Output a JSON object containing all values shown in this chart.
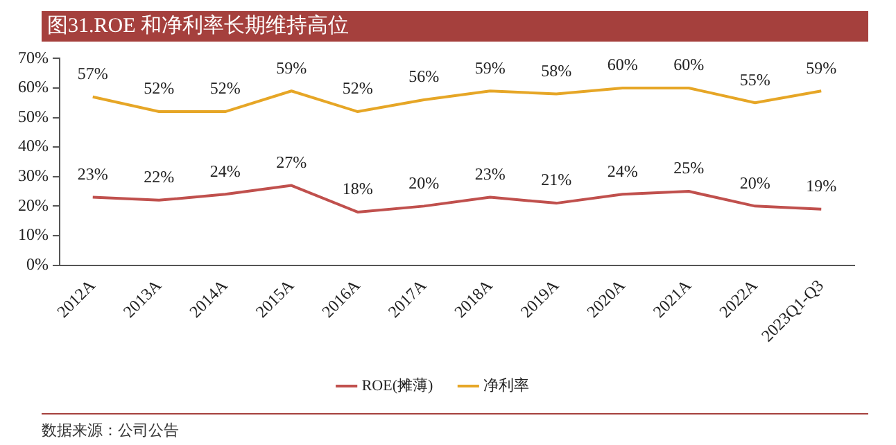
{
  "chart_data": {
    "type": "line",
    "title": "图31.ROE 和净利率长期维持高位",
    "categories": [
      "2012A",
      "2013A",
      "2014A",
      "2015A",
      "2016A",
      "2017A",
      "2018A",
      "2019A",
      "2020A",
      "2021A",
      "2022A",
      "2023Q1-Q3"
    ],
    "series": [
      {
        "name": "ROE(摊薄)",
        "color": "#c0504d",
        "values": [
          23,
          22,
          24,
          27,
          18,
          20,
          23,
          21,
          24,
          25,
          20,
          19
        ],
        "value_labels": [
          "23%",
          "22%",
          "24%",
          "27%",
          "18%",
          "20%",
          "23%",
          "21%",
          "24%",
          "25%",
          "20%",
          "19%"
        ]
      },
      {
        "name": "净利率",
        "color": "#e6a626",
        "values": [
          57,
          52,
          52,
          59,
          52,
          56,
          59,
          58,
          60,
          60,
          55,
          59
        ],
        "value_labels": [
          "57%",
          "52%",
          "52%",
          "59%",
          "52%",
          "56%",
          "59%",
          "58%",
          "60%",
          "60%",
          "55%",
          "59%"
        ]
      }
    ],
    "ylim": [
      0,
      70
    ],
    "yticks": [
      {
        "value": 0,
        "label": "0%"
      },
      {
        "value": 10,
        "label": "10%"
      },
      {
        "value": 20,
        "label": "20%"
      },
      {
        "value": 30,
        "label": "30%"
      },
      {
        "value": 40,
        "label": "40%"
      },
      {
        "value": 50,
        "label": "50%"
      },
      {
        "value": 60,
        "label": "60%"
      },
      {
        "value": 70,
        "label": "70%"
      }
    ],
    "grid": false,
    "legend": "bottom",
    "marker": "none",
    "line_style": "solid",
    "annotations": [
      "数据来源：公司公告"
    ]
  }
}
